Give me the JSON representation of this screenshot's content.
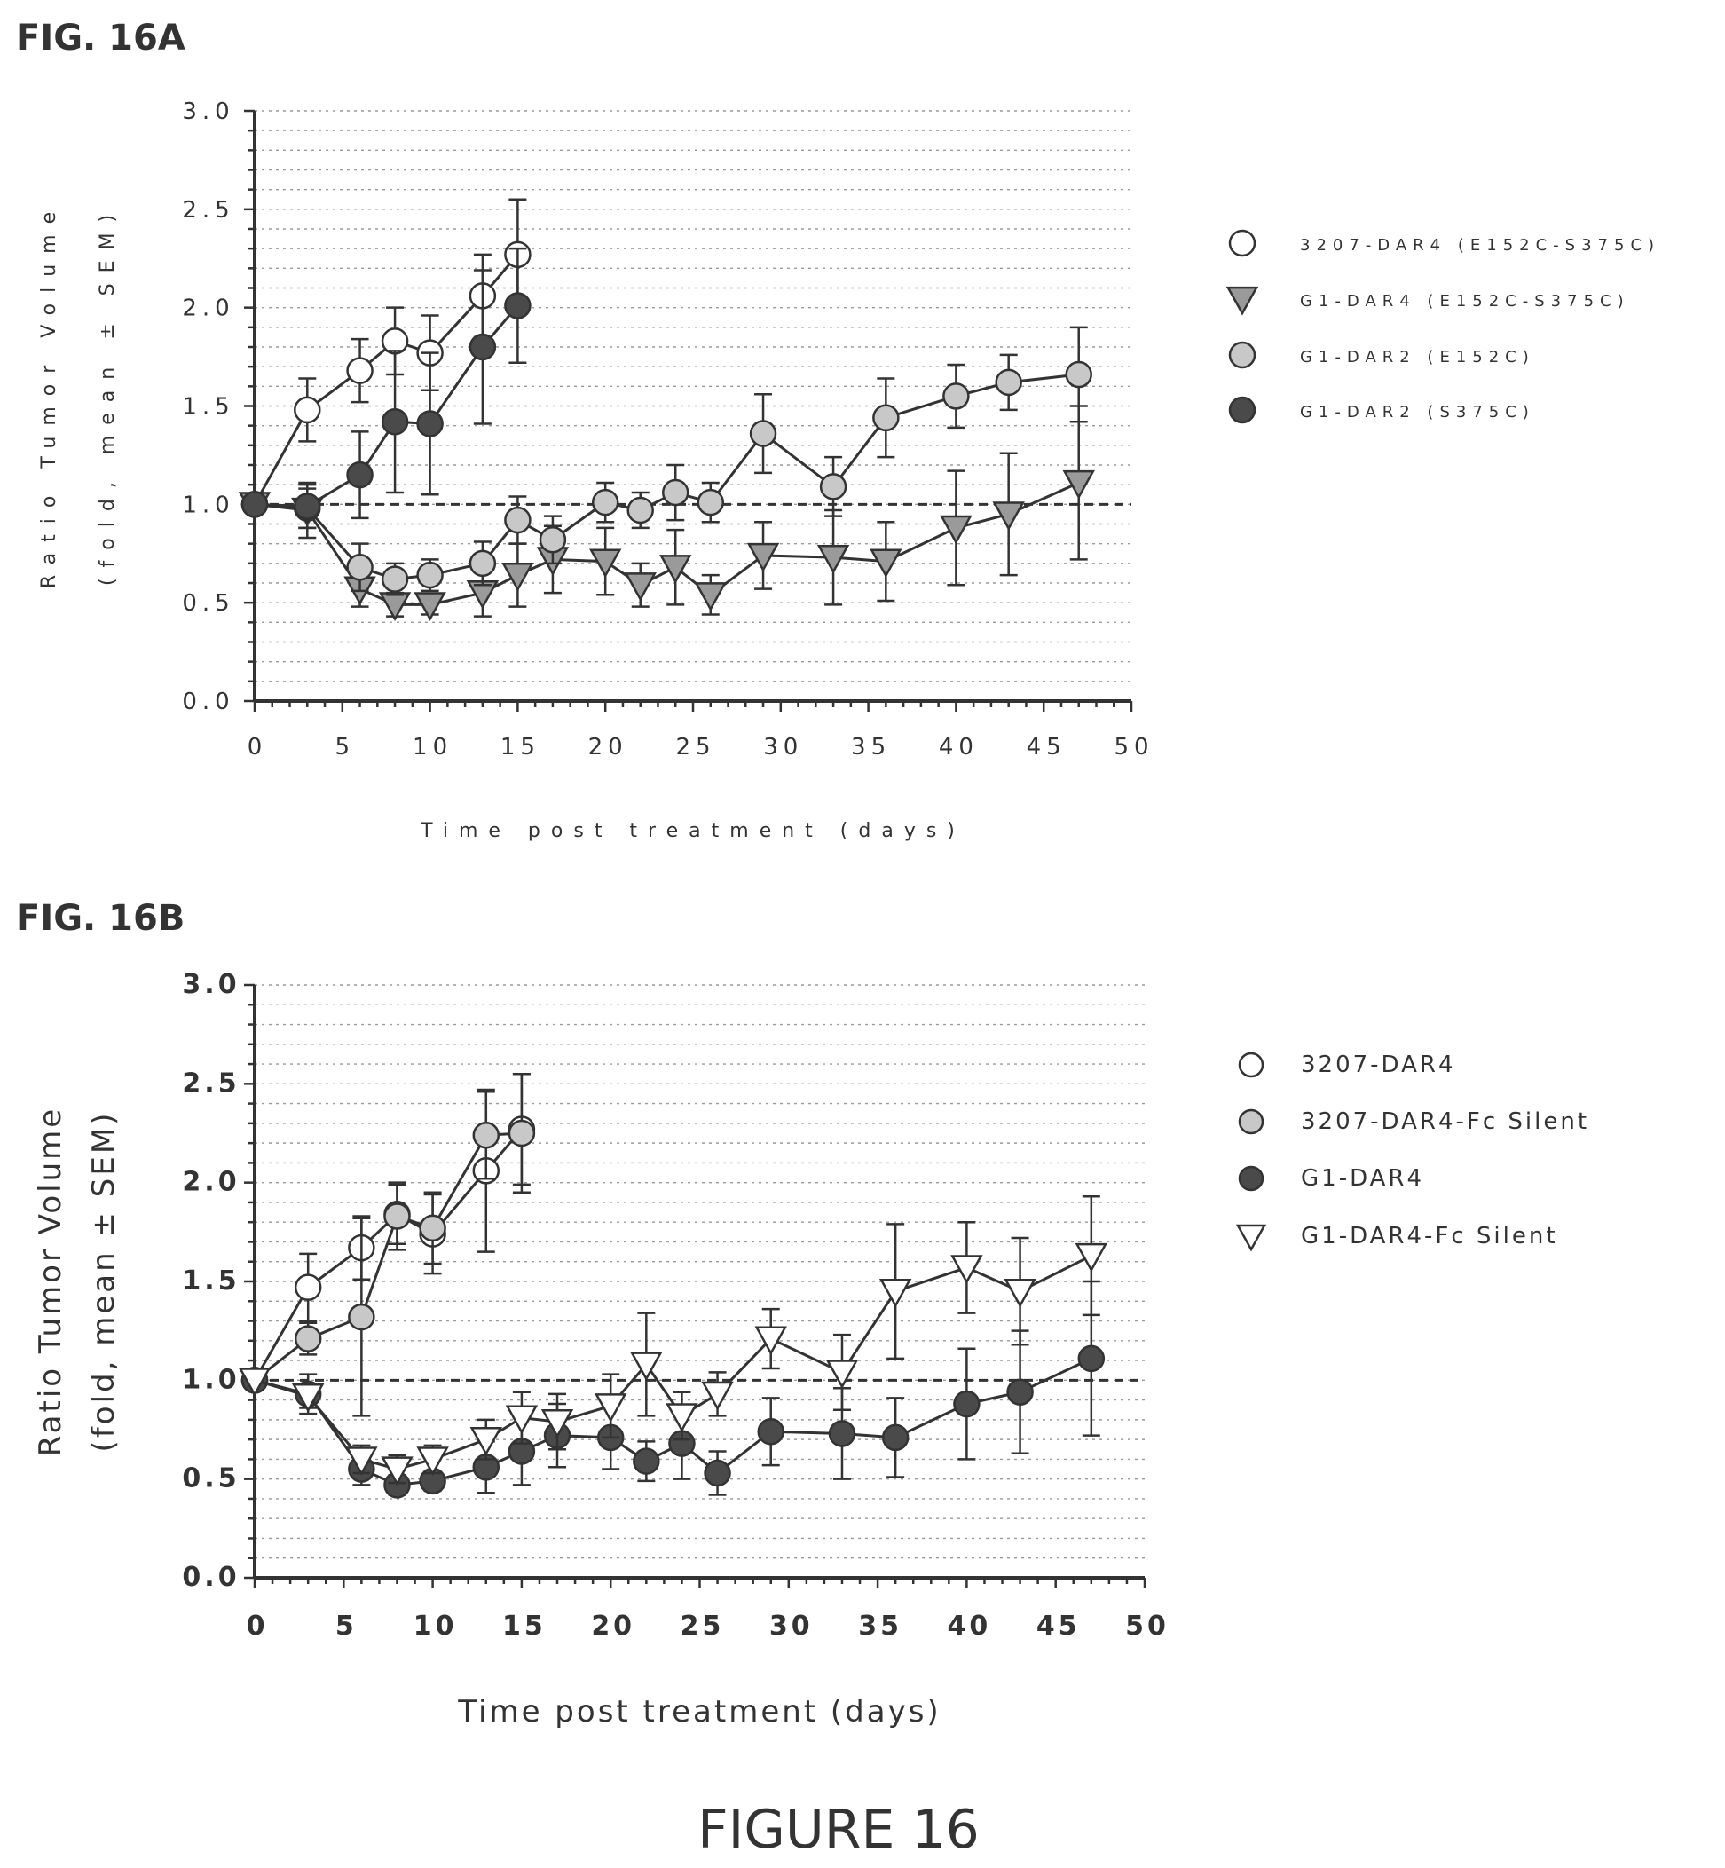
{
  "page": {
    "caption": "FIGURE 16"
  },
  "colors": {
    "open": "#ffffff",
    "light": "#c8c8c8",
    "mid": "#9a9a9a",
    "dark": "#4a4a4a",
    "ink": "#333333"
  },
  "chart_data": [
    {
      "id": "a",
      "panel_label": "FIG. 16A",
      "type": "line",
      "xlabel": "Time post treatment (days)",
      "ylabel": "Ratio Tumor Volume",
      "ylabel2": "(fold, mean ± SEM)",
      "xlim": [
        0,
        50
      ],
      "ylim": [
        0,
        3
      ],
      "x_ticks": [
        "0",
        "5",
        "10",
        "15",
        "20",
        "25",
        "30",
        "35",
        "40",
        "45",
        "50"
      ],
      "y_ticks": [
        "0.0",
        "0.5",
        "1.0",
        "1.5",
        "2.0",
        "2.5",
        "3.0"
      ],
      "reference_line": 1.0,
      "grid": true,
      "legend_position": "right",
      "series": [
        {
          "name": "3207-DAR4 (E152C-S375C)",
          "marker": "circle",
          "fill": "open",
          "x": [
            0,
            3,
            6,
            8,
            10,
            13,
            15
          ],
          "y": [
            1.0,
            1.48,
            1.68,
            1.83,
            1.77,
            2.06,
            2.27
          ],
          "err": [
            0,
            0.16,
            0.16,
            0.17,
            0.19,
            0.21,
            0.28
          ]
        },
        {
          "name": "G1-DAR4 (E152C-S375C)",
          "marker": "triangle-down",
          "fill": "mid",
          "x": [
            0,
            3,
            6,
            8,
            10,
            13,
            15,
            17,
            20,
            22,
            24,
            26,
            29,
            33,
            36,
            40,
            43,
            47
          ],
          "y": [
            1.0,
            0.97,
            0.57,
            0.49,
            0.49,
            0.55,
            0.64,
            0.72,
            0.71,
            0.59,
            0.68,
            0.54,
            0.74,
            0.73,
            0.71,
            0.88,
            0.95,
            1.11
          ],
          "err": [
            0,
            0.14,
            0.09,
            0.06,
            0.05,
            0.12,
            0.16,
            0.17,
            0.17,
            0.11,
            0.19,
            0.1,
            0.17,
            0.24,
            0.2,
            0.29,
            0.31,
            0.39
          ]
        },
        {
          "name": "G1-DAR2 (E152C)",
          "marker": "circle",
          "fill": "light",
          "x": [
            0,
            3,
            6,
            8,
            10,
            13,
            15,
            17,
            20,
            22,
            24,
            26,
            29,
            33,
            36,
            40,
            43,
            47
          ],
          "y": [
            1.0,
            0.98,
            0.68,
            0.62,
            0.64,
            0.7,
            0.92,
            0.82,
            1.01,
            0.97,
            1.06,
            1.01,
            1.36,
            1.09,
            1.44,
            1.55,
            1.62,
            1.66
          ],
          "err": [
            0,
            0.1,
            0.12,
            0.08,
            0.08,
            0.11,
            0.12,
            0.12,
            0.1,
            0.09,
            0.14,
            0.1,
            0.2,
            0.15,
            0.2,
            0.16,
            0.14,
            0.24
          ]
        },
        {
          "name": "G1-DAR2 (S375C)",
          "marker": "circle",
          "fill": "dark",
          "x": [
            0,
            3,
            6,
            8,
            10,
            13,
            15
          ],
          "y": [
            1.0,
            0.99,
            1.15,
            1.42,
            1.41,
            1.8,
            2.01
          ],
          "err": [
            0,
            0.11,
            0.22,
            0.36,
            0.36,
            0.39,
            0.29
          ]
        }
      ]
    },
    {
      "id": "b",
      "panel_label": "FIG. 16B",
      "type": "line",
      "xlabel": "Time post treatment (days)",
      "ylabel": "Ratio Tumor Volume",
      "ylabel2": "(fold, mean ± SEM)",
      "xlim": [
        0,
        50
      ],
      "ylim": [
        0,
        3
      ],
      "x_ticks": [
        "0",
        "5",
        "10",
        "15",
        "20",
        "25",
        "30",
        "35",
        "40",
        "45",
        "50"
      ],
      "y_ticks": [
        "0.0",
        "0.5",
        "1.0",
        "1.5",
        "2.0",
        "2.5",
        "3.0"
      ],
      "reference_line": 1.0,
      "grid": true,
      "legend_position": "right",
      "series": [
        {
          "name": "3207-DAR4",
          "marker": "circle",
          "fill": "open",
          "x": [
            0,
            3,
            6,
            8,
            10,
            13,
            15
          ],
          "y": [
            1.0,
            1.47,
            1.67,
            1.84,
            1.74,
            2.06,
            2.27
          ],
          "err": [
            0,
            0.17,
            0.16,
            0.15,
            0.2,
            0.41,
            0.28
          ]
        },
        {
          "name": "3207-DAR4-Fc Silent",
          "marker": "circle",
          "fill": "light",
          "x": [
            0,
            3,
            6,
            8,
            10,
            13,
            15
          ],
          "y": [
            1.0,
            1.21,
            1.32,
            1.83,
            1.77,
            2.24,
            2.25
          ],
          "err": [
            0,
            0.08,
            0.5,
            0.17,
            0.18,
            0.22,
            0.3
          ]
        },
        {
          "name": "G1-DAR4",
          "marker": "circle",
          "fill": "dark",
          "x": [
            0,
            3,
            6,
            8,
            10,
            13,
            15,
            17,
            20,
            22,
            24,
            26,
            29,
            33,
            36,
            40,
            43,
            47
          ],
          "y": [
            1.0,
            0.93,
            0.55,
            0.47,
            0.49,
            0.56,
            0.64,
            0.72,
            0.71,
            0.59,
            0.68,
            0.53,
            0.74,
            0.73,
            0.71,
            0.88,
            0.94,
            1.11
          ],
          "err": [
            0,
            0.1,
            0.08,
            0.05,
            0.05,
            0.13,
            0.17,
            0.16,
            0.16,
            0.1,
            0.18,
            0.11,
            0.17,
            0.23,
            0.2,
            0.28,
            0.31,
            0.39
          ]
        },
        {
          "name": "G1-DAR4-Fc Silent",
          "marker": "triangle-down-open",
          "fill": "open",
          "x": [
            0,
            3,
            6,
            8,
            10,
            13,
            15,
            17,
            20,
            22,
            24,
            26,
            29,
            33,
            36,
            40,
            43,
            47
          ],
          "y": [
            1.0,
            0.92,
            0.6,
            0.55,
            0.6,
            0.7,
            0.81,
            0.79,
            0.87,
            1.08,
            0.82,
            0.93,
            1.21,
            1.04,
            1.45,
            1.57,
            1.45,
            1.63
          ],
          "err": [
            0,
            0.06,
            0.07,
            0.07,
            0.07,
            0.1,
            0.13,
            0.14,
            0.16,
            0.26,
            0.12,
            0.11,
            0.15,
            0.19,
            0.34,
            0.23,
            0.27,
            0.3
          ]
        }
      ]
    }
  ]
}
